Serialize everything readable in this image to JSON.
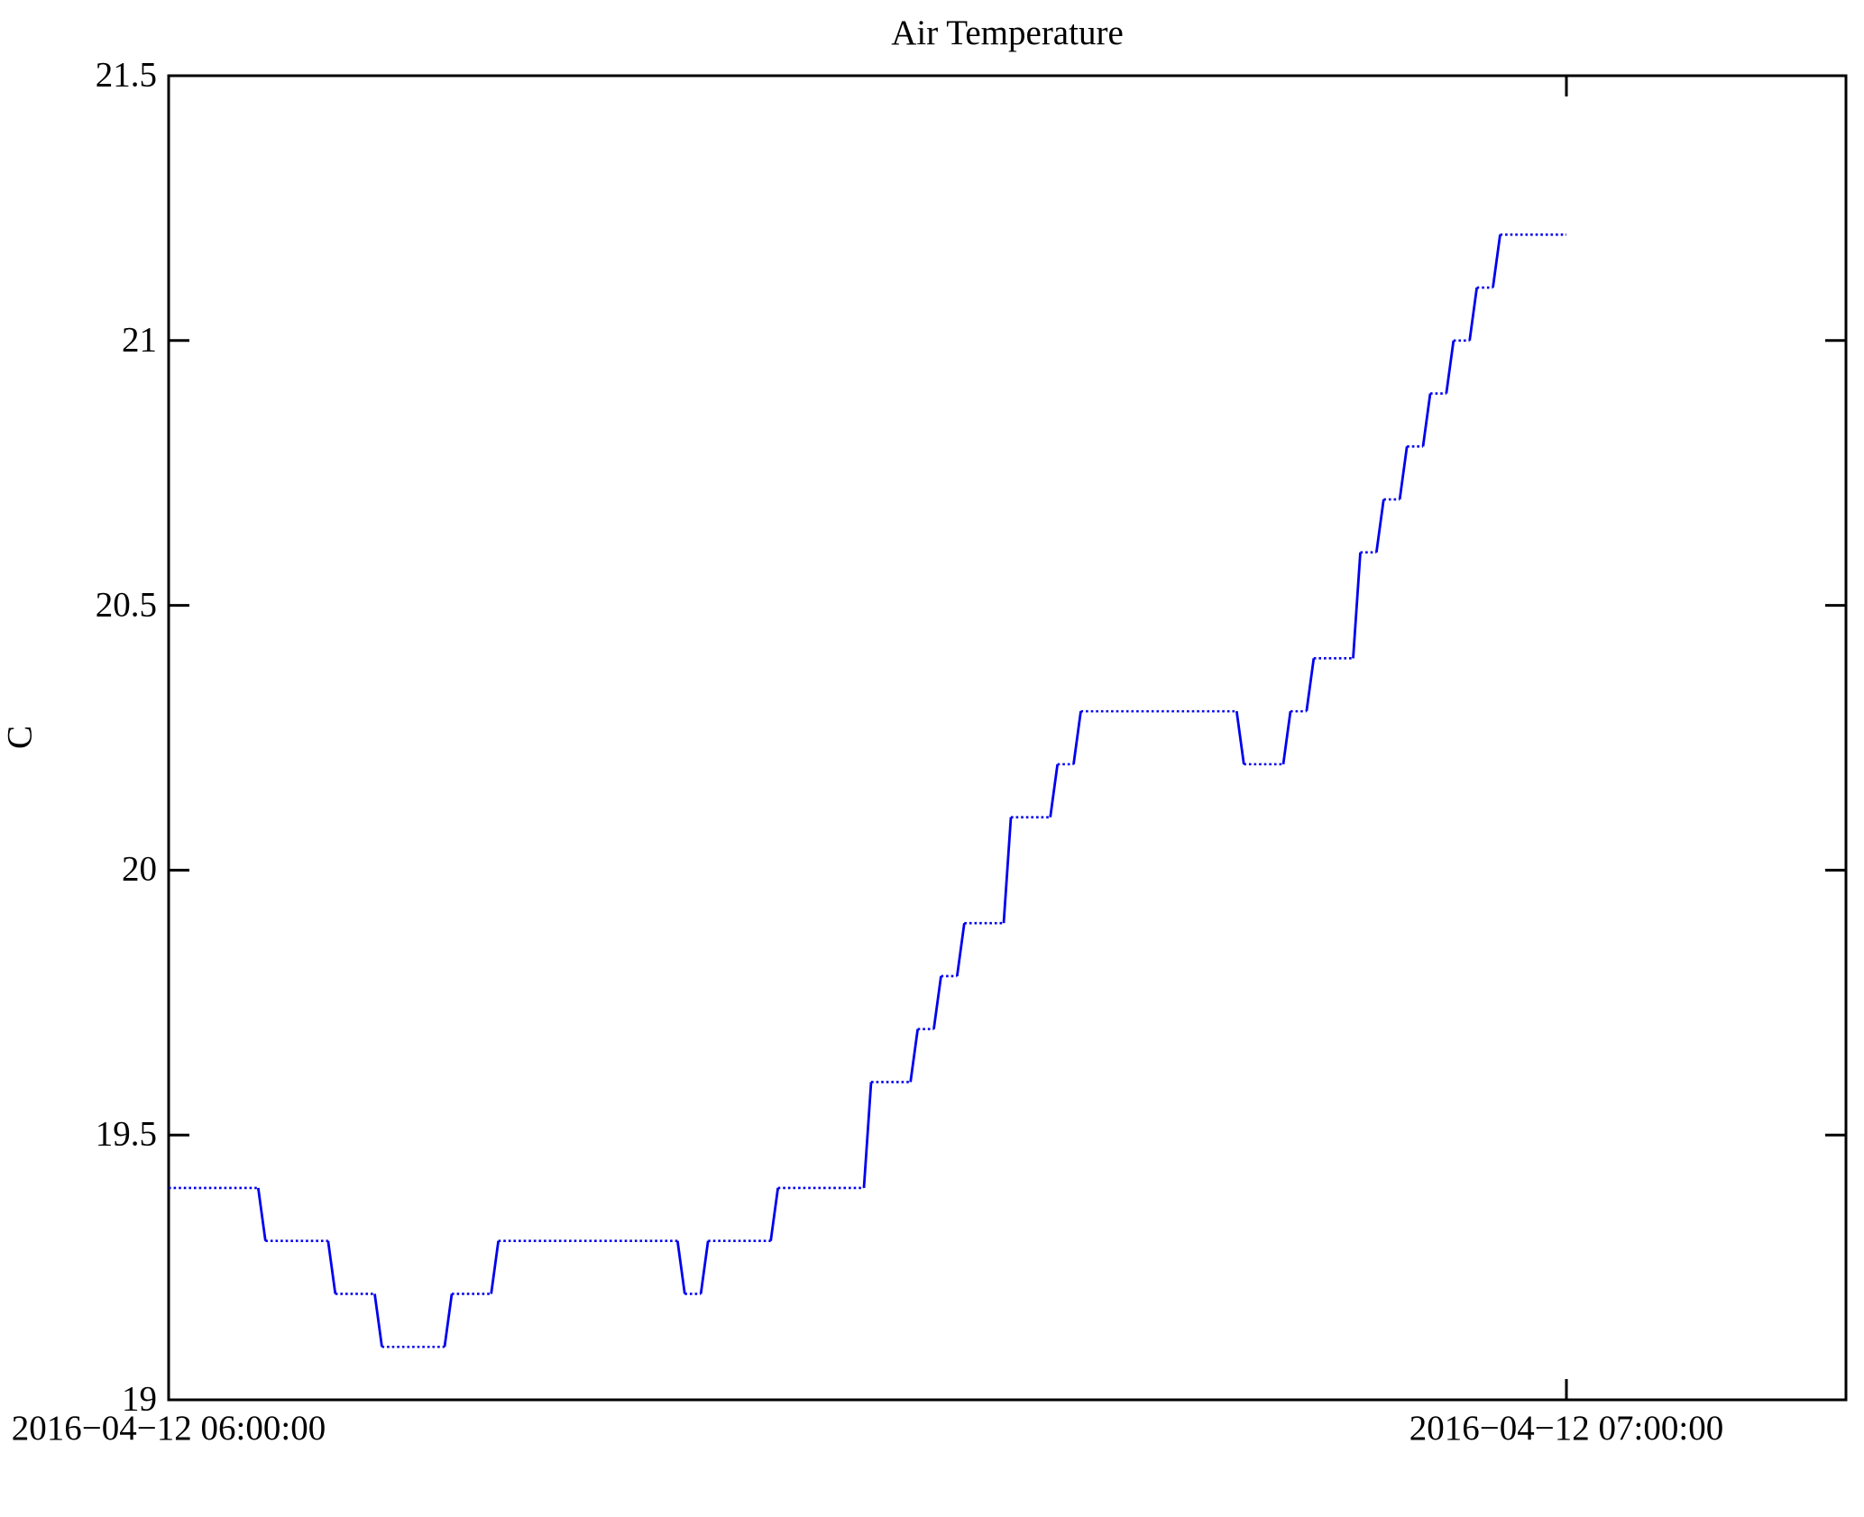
{
  "figure": {
    "background": "#ffffff"
  },
  "chart_data": {
    "type": "line",
    "subtype": "step-post",
    "title": "Air Temperature",
    "xlabel": "",
    "ylabel": "C",
    "line_color": "#0000ee",
    "axis_color": "#000000",
    "grid": false,
    "legend": "none",
    "x_axis": {
      "tick_labels": [
        "2016−04−12 06:00:00",
        "2016−04−12 07:00:00"
      ],
      "tick_minutes": [
        0,
        60
      ],
      "range_minutes": [
        0,
        72
      ]
    },
    "y_axis": {
      "ticks": [
        19,
        19.5,
        20,
        20.5,
        21,
        21.5
      ],
      "tick_labels": [
        "19",
        "19.5",
        "20",
        "20.5",
        "21",
        "21.5"
      ],
      "range": [
        19,
        21.5
      ]
    },
    "series": [
      {
        "name": "Air Temperature",
        "unit": "C",
        "start_time": "2016-04-12 06:00:00",
        "end_time": "2016-04-12 07:00:00",
        "sample_interval_minutes": 1,
        "x_minutes": [
          0,
          1,
          2,
          3,
          4,
          5,
          6,
          7,
          8,
          9,
          10,
          11,
          12,
          13,
          14,
          15,
          16,
          17,
          18,
          19,
          20,
          21,
          22,
          23,
          24,
          25,
          26,
          27,
          28,
          29,
          30,
          31,
          32,
          33,
          34,
          35,
          36,
          37,
          38,
          39,
          40,
          41,
          42,
          43,
          44,
          45,
          46,
          47,
          48,
          49,
          50,
          51,
          52,
          53,
          54,
          55,
          56,
          57,
          58,
          59,
          60
        ],
        "values": [
          19.4,
          19.4,
          19.4,
          19.4,
          19.3,
          19.3,
          19.3,
          19.2,
          19.2,
          19.1,
          19.1,
          19.1,
          19.2,
          19.2,
          19.3,
          19.3,
          19.3,
          19.3,
          19.3,
          19.3,
          19.3,
          19.3,
          19.2,
          19.3,
          19.3,
          19.3,
          19.4,
          19.4,
          19.4,
          19.4,
          19.6,
          19.6,
          19.7,
          19.8,
          19.9,
          19.9,
          20.1,
          20.1,
          20.2,
          20.3,
          20.3,
          20.3,
          20.3,
          20.3,
          20.3,
          20.3,
          20.2,
          20.2,
          20.3,
          20.4,
          20.4,
          20.6,
          20.7,
          20.8,
          20.9,
          21.0,
          21.1,
          21.2,
          21.2,
          21.2,
          21.2
        ]
      }
    ]
  }
}
